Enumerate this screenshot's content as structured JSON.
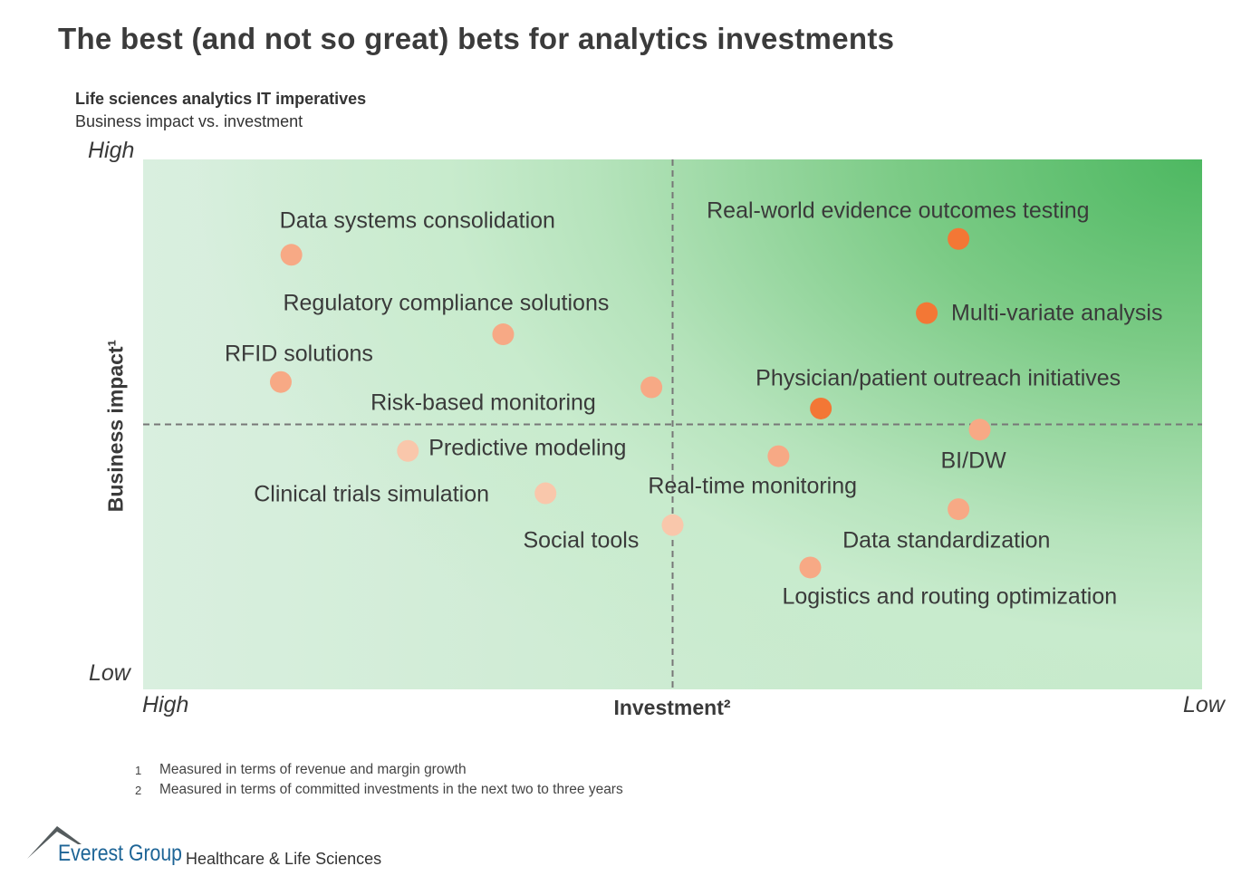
{
  "title": "The best (and not so great) bets for analytics investments",
  "subtitle": "Life sciences analytics IT imperatives",
  "subtitle2": "Business impact vs. investment",
  "footnotes": [
    {
      "num": "1",
      "text": "Measured in terms of revenue and margin growth"
    },
    {
      "num": "2",
      "text": "Measured in terms of committed investments in the next two to three years"
    }
  ],
  "logo": {
    "name": "Everest Group",
    "division": "Healthcare & Life Sciences"
  },
  "chart_data": {
    "type": "scatter",
    "xlabel": "Investment²",
    "ylabel": "Business impact¹",
    "x_end_labels": {
      "left": "High",
      "right": "Low"
    },
    "y_end_labels": {
      "top": "High",
      "bottom": "Low"
    },
    "xlim": [
      10,
      0
    ],
    "ylim": [
      0,
      10
    ],
    "quadrant_dividers": {
      "x": 5,
      "y": 5,
      "style": "dashed"
    },
    "grid": false,
    "colors": {
      "high": "#f37735",
      "medium": "#f7a985",
      "low": "#f9c7ab"
    },
    "points": [
      {
        "label": "Data systems consolidation",
        "x": 8.6,
        "y": 8.2,
        "tier": "medium"
      },
      {
        "label": "Regulatory compliance solutions",
        "x": 6.6,
        "y": 6.7,
        "tier": "medium"
      },
      {
        "label": "RFID solutions",
        "x": 8.7,
        "y": 5.8,
        "tier": "medium"
      },
      {
        "label": "Risk-based monitoring",
        "x": 5.2,
        "y": 5.7,
        "tier": "medium"
      },
      {
        "label": "Predictive modeling",
        "x": 7.5,
        "y": 4.5,
        "tier": "low"
      },
      {
        "label": "Clinical trials simulation",
        "x": 6.2,
        "y": 3.7,
        "tier": "low"
      },
      {
        "label": "Social tools",
        "x": 5.0,
        "y": 3.1,
        "tier": "low"
      },
      {
        "label": "Real-world evidence outcomes testing",
        "x": 2.3,
        "y": 8.5,
        "tier": "high"
      },
      {
        "label": "Multi-variate analysis",
        "x": 2.6,
        "y": 7.1,
        "tier": "high"
      },
      {
        "label": "Physician/patient outreach initiatives",
        "x": 3.6,
        "y": 5.3,
        "tier": "high"
      },
      {
        "label": "BI/DW",
        "x": 2.1,
        "y": 4.9,
        "tier": "medium"
      },
      {
        "label": "Real-time monitoring",
        "x": 4.0,
        "y": 4.4,
        "tier": "medium"
      },
      {
        "label": "Data standardization",
        "x": 2.3,
        "y": 3.4,
        "tier": "medium"
      },
      {
        "label": "Logistics and routing optimization",
        "x": 3.7,
        "y": 2.3,
        "tier": "medium"
      }
    ]
  }
}
